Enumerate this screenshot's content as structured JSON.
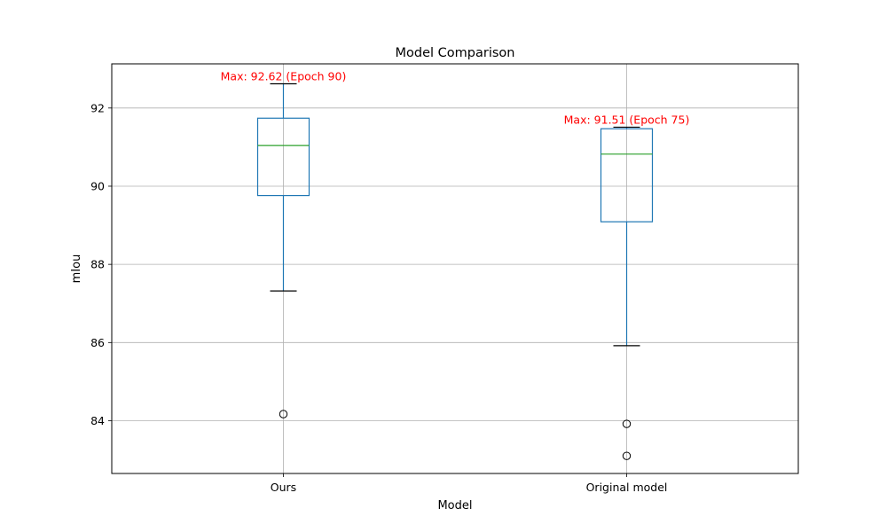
{
  "chart_data": {
    "type": "box",
    "title": "Model Comparison",
    "xlabel": "Model",
    "ylabel": "mIou",
    "ylim": [
      82.65,
      93.13
    ],
    "yticks": [
      84,
      86,
      88,
      90,
      92
    ],
    "grid": true,
    "categories": [
      "Ours",
      "Original model"
    ],
    "boxes": [
      {
        "name": "Ours",
        "whisker_low": 87.32,
        "q1": 89.76,
        "median": 91.04,
        "q3": 91.74,
        "whisker_high": 92.62,
        "outliers": [
          84.17
        ],
        "annotation": "Max: 92.62 (Epoch 90)"
      },
      {
        "name": "Original model",
        "whisker_low": 85.92,
        "q1": 89.09,
        "median": 90.82,
        "q3": 91.47,
        "whisker_high": 91.51,
        "outliers": [
          83.92,
          83.1
        ],
        "annotation": "Max: 91.51 (Epoch 75)"
      }
    ],
    "colors": {
      "box": "#1f77b4",
      "median": "#2ca02c",
      "whisker_cap": "#000000",
      "annotation": "#ff0000",
      "grid": "#b0b0b0"
    }
  }
}
